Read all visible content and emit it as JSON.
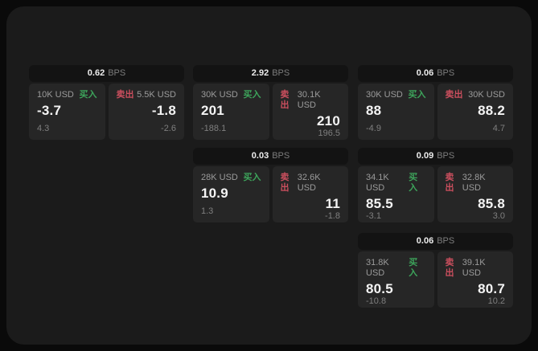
{
  "labels": {
    "bps_unit": "BPS",
    "buy": "买入",
    "sell": "卖出"
  },
  "colors": {
    "outer_bg": "#0a0a0a",
    "surface_bg": "#1b1b1b",
    "card_header_bg": "#131313",
    "tile_bg": "#262626",
    "buy_green": "#3da45b",
    "sell_red": "#cb4f5e"
  },
  "cards": [
    {
      "bps": "0.62",
      "buy": {
        "amount": "10K USD",
        "value": "-3.7",
        "delta": "4.3"
      },
      "sell": {
        "amount": "5.5K USD",
        "value": "-1.8",
        "delta": "-2.6"
      }
    },
    {
      "bps": "2.92",
      "buy": {
        "amount": "30K USD",
        "value": "201",
        "delta": "-188.1"
      },
      "sell": {
        "amount": "30.1K USD",
        "value": "210",
        "delta": "196.5"
      }
    },
    {
      "bps": "0.06",
      "buy": {
        "amount": "30K USD",
        "value": "88",
        "delta": "-4.9"
      },
      "sell": {
        "amount": "30K USD",
        "value": "88.2",
        "delta": "4.7"
      }
    },
    {
      "bps": "0.03",
      "buy": {
        "amount": "28K USD",
        "value": "10.9",
        "delta": "1.3"
      },
      "sell": {
        "amount": "32.6K USD",
        "value": "11",
        "delta": "-1.8"
      }
    },
    {
      "bps": "0.09",
      "buy": {
        "amount": "34.1K USD",
        "value": "85.5",
        "delta": "-3.1"
      },
      "sell": {
        "amount": "32.8K USD",
        "value": "85.8",
        "delta": "3.0"
      }
    },
    {
      "bps": "0.06",
      "buy": {
        "amount": "31.8K USD",
        "value": "80.5",
        "delta": "-10.8"
      },
      "sell": {
        "amount": "39.1K USD",
        "value": "80.7",
        "delta": "10.2"
      }
    }
  ]
}
